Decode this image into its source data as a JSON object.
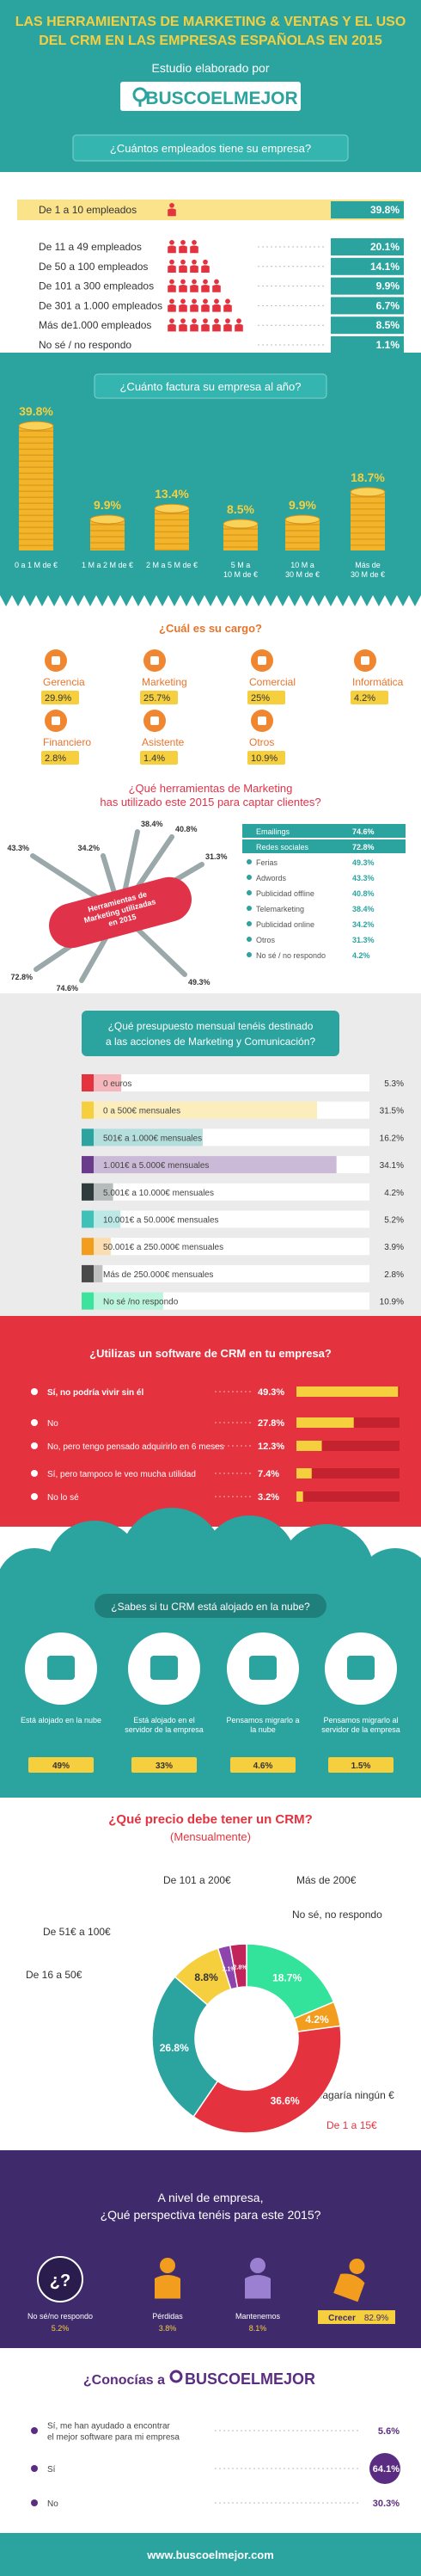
{
  "header": {
    "title_lines": [
      "LAS HERRAMIENTAS DE MARKETING & VENTAS Y EL USO",
      "DEL CRM EN LAS EMPRESAS ESPAÑOLAS EN 2015"
    ],
    "subtitle": "Estudio elaborado por",
    "logo": "BUSCOELMEJOR",
    "question": "¿Cuántos empleados tiene su empresa?"
  },
  "employees": {
    "rows": [
      {
        "label": "De 1 a 10 empleados",
        "value": "39.8%"
      },
      {
        "label": "De 11 a 49 empleados",
        "value": "20.1%"
      },
      {
        "label": "De 50 a 100 empleados",
        "value": "14.1%"
      },
      {
        "label": "De 101 a 300 empleados",
        "value": "9.9%"
      },
      {
        "label": "De 301 a 1.000 empleados",
        "value": "6.7%"
      },
      {
        "label": "Más de1.000 empleados",
        "value": "8.5%"
      },
      {
        "label": "No sé / no respondo",
        "value": "1.1%"
      }
    ]
  },
  "revenue": {
    "question": "¿Cuánto factura su empresa al año?",
    "items": [
      {
        "label_lines": [
          "0 a 1 M de €"
        ],
        "value": "39.8%"
      },
      {
        "label_lines": [
          "1 M a 2 M de €"
        ],
        "value": "9.9%"
      },
      {
        "label_lines": [
          "2 M a 5 M de €"
        ],
        "value": "13.4%"
      },
      {
        "label_lines": [
          "5 M a",
          "10 M de €"
        ],
        "value": "8.5%"
      },
      {
        "label_lines": [
          "10 M a",
          "30 M de €"
        ],
        "value": "9.9%"
      },
      {
        "label_lines": [
          "Más de",
          "30 M de €"
        ],
        "value": "18.7%"
      }
    ]
  },
  "role": {
    "question": "¿Cuál es su cargo?",
    "items": [
      {
        "label": "Gerencia",
        "value": "29.9%"
      },
      {
        "label": "Marketing",
        "value": "25.7%"
      },
      {
        "label": "Comercial",
        "value": "25%"
      },
      {
        "label": "Informática",
        "value": "4.2%"
      },
      {
        "label": "Financiero",
        "value": "2.8%"
      },
      {
        "label": "Asistente",
        "value": "1.4%"
      },
      {
        "label": "Otros",
        "value": "10.9%"
      }
    ]
  },
  "tools": {
    "question_lines": [
      "¿Qué herramientas de Marketing",
      "has utilizado este 2015 para captar clientes?"
    ],
    "center_lines": [
      "Herramientas de",
      "Marketing utilizadas",
      "en 2015"
    ],
    "items": [
      {
        "label": "Emailings",
        "value": "74.6%"
      },
      {
        "label": "Redes sociales",
        "value": "72.8%"
      },
      {
        "label": "Ferias",
        "value": "49.3%"
      },
      {
        "label": "Adwords",
        "value": "43.3%"
      },
      {
        "label": "Publicidad offline",
        "value": "40.8%"
      },
      {
        "label": "Telemarketing",
        "value": "38.4%"
      },
      {
        "label": "Publicidad online",
        "value": "34.2%"
      },
      {
        "label": "Otros",
        "value": "31.3%"
      },
      {
        "label": "No sé / no respondo",
        "value": "4.2%"
      }
    ]
  },
  "budget": {
    "question_lines": [
      "¿Qué presupuesto mensual tenéis destinado",
      "a las acciones de Marketing y Comunicación?"
    ],
    "rows": [
      {
        "label": "0 euros",
        "value": "5.3%",
        "color": "#e5323f"
      },
      {
        "label": "0 a 500€ mensuales",
        "value": "31.5%",
        "color": "#f6cf3f"
      },
      {
        "label": "501€ a 1.000€ mensuales",
        "value": "16.2%",
        "color": "#2ba39f"
      },
      {
        "label": "1.001€ a 5.000€ mensuales",
        "value": "34.1%",
        "color": "#6a3a8c"
      },
      {
        "label": "5.001€ a 10.000€ mensuales",
        "value": "4.2%",
        "color": "#2f3b3d"
      },
      {
        "label": "10.001€ a 50.000€ mensuales",
        "value": "5.2%",
        "color": "#3fc1b8"
      },
      {
        "label": "50.001€ a 250.000€ mensuales",
        "value": "3.9%",
        "color": "#f29d1e"
      },
      {
        "label": "Más de 250.000€ mensuales",
        "value": "2.8%",
        "color": "#4a4a4a"
      },
      {
        "label": "No sé /no respondo",
        "value": "10.9%",
        "color": "#3be39c"
      }
    ]
  },
  "crm": {
    "question": "¿Utilizas un software de CRM en tu empresa?",
    "rows": [
      {
        "label": "Sí, no podría vivir sin él",
        "value": "49.3%"
      },
      {
        "label": "No",
        "value": "27.8%"
      },
      {
        "label": "No, pero tengo pensado adquirirlo en 6 meses",
        "value": "12.3%"
      },
      {
        "label": "Sí, pero tampoco le veo mucha utilidad",
        "value": "7.4%"
      },
      {
        "label": "No lo sé",
        "value": "3.2%"
      }
    ]
  },
  "cloud": {
    "question": "¿Sabes si tu CRM está alojado en la nube?",
    "items": [
      {
        "label_lines": [
          "Está alojado en la nube"
        ],
        "value": "49%"
      },
      {
        "label_lines": [
          "Está alojado en el",
          "servidor de la empresa"
        ],
        "value": "33%"
      },
      {
        "label_lines": [
          "Pensamos migrarlo a",
          "la nube"
        ],
        "value": "4.6%"
      },
      {
        "label_lines": [
          "Pensamos migrarlo al",
          "servidor de la empresa"
        ],
        "value": "1.5%"
      }
    ]
  },
  "price": {
    "title": "¿Qué precio debe tener un CRM?",
    "subtitle": "(Mensualmente)",
    "items": [
      {
        "label": "No sé, no respondo",
        "value": "18.7%",
        "color": "#34e39b"
      },
      {
        "label": "No pagaría ningún €",
        "value": "4.2%",
        "color": "#f29d1e"
      },
      {
        "label": "De 1 a 15€",
        "value": "36.6%",
        "color": "#e5323f"
      },
      {
        "label": "De 16 a 50€",
        "value": "26.8%",
        "color": "#2ba39f"
      },
      {
        "label": "De 51€ a 100€",
        "value": "8.8%",
        "color": "#f6cf3f"
      },
      {
        "label": "De 101 a 200€",
        "value": "2.1%",
        "color": "#8e44ad"
      },
      {
        "label": "Más de 200€",
        "value": "2.8%",
        "color": "#c0245a"
      }
    ]
  },
  "outlook": {
    "question_lines": [
      "A nivel de empresa,",
      "¿Qué perspectiva tenéis para este 2015?"
    ],
    "unknown_icon": "¿?",
    "items": [
      {
        "label": "No sé/no respondo",
        "value": "5.2%"
      },
      {
        "label": "Pérdidas",
        "value": "3.8%"
      },
      {
        "label": "Mantenemos",
        "value": "8.1%"
      },
      {
        "label": "Crecer",
        "value": "82.9%"
      }
    ]
  },
  "awareness": {
    "question": "¿Conocías a",
    "logo": "BUSCOELMEJOR",
    "items": [
      {
        "label_lines": [
          "Sí, me han ayudado a encontrar",
          "el mejor software para mi empresa"
        ],
        "value": "5.6%"
      },
      {
        "label_lines": [
          "Sí"
        ],
        "value": "64.1%"
      },
      {
        "label_lines": [
          "No"
        ],
        "value": "30.3%"
      }
    ]
  },
  "footer": {
    "url": "www.buscoelmejor.com"
  }
}
